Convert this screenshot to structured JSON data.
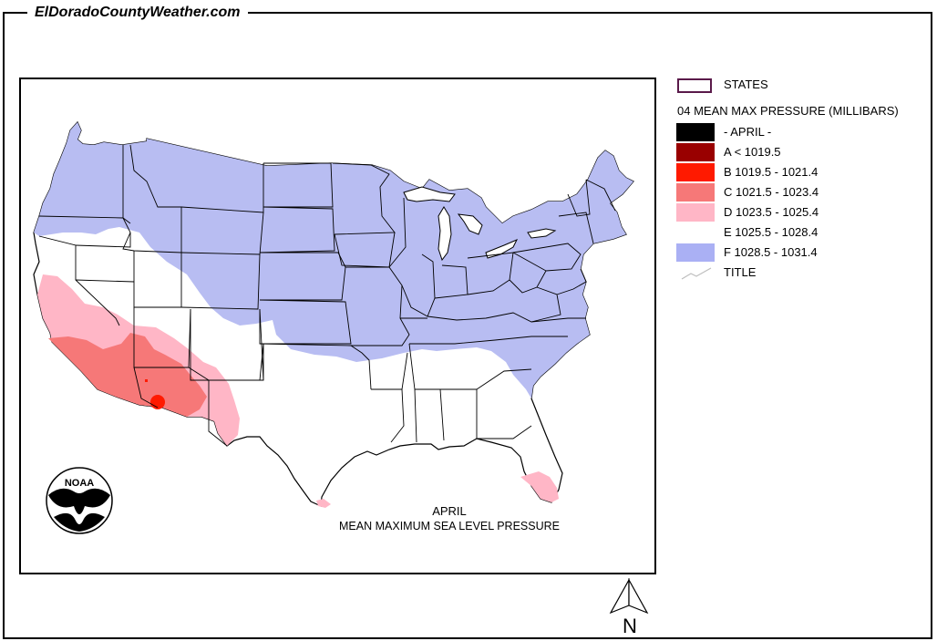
{
  "site": {
    "title": "ElDoradoCountyWeather.com"
  },
  "legend": {
    "states_label": "STATES",
    "heading": "04 MEAN MAX PRESSURE (MILLIBARS)",
    "items": [
      {
        "label": "- APRIL -",
        "color": "#000000"
      },
      {
        "label": "A < 1019.5",
        "color": "#990000"
      },
      {
        "label": "B 1019.5 - 1021.4",
        "color": "#ff1a00"
      },
      {
        "label": "C 1021.5 - 1023.4",
        "color": "#f67878"
      },
      {
        "label": "D 1023.5 - 1025.4",
        "color": "#ffb6c6"
      },
      {
        "label": "E 1025.5 - 1028.4",
        "color": "#ffffff"
      },
      {
        "label": "F 1028.5 - 1031.4",
        "color": "#aab0f4"
      }
    ],
    "title_label": "TITLE",
    "states_outline_color": "#5a1a4a"
  },
  "map": {
    "caption_line1": "APRIL",
    "caption_line2": "MEAN MAXIMUM SEA LEVEL PRESSURE",
    "noaa_text": "NOAA",
    "zone_colors": {
      "B": "#ff1a00",
      "C": "#f67878",
      "D": "#ffb6c6",
      "F": "#b8bdf2"
    }
  },
  "compass": {
    "letter": "N"
  }
}
